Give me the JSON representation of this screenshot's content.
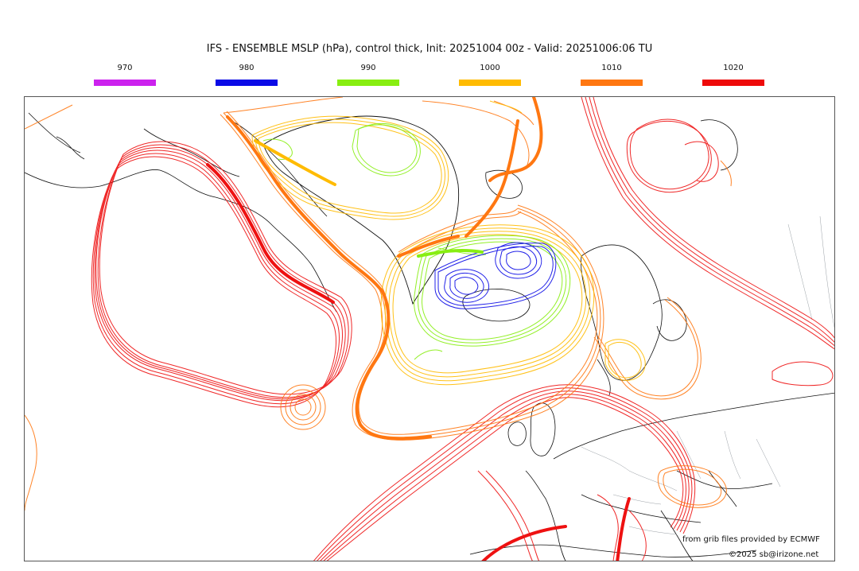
{
  "title": "IFS - ENSEMBLE MSLP (hPa), control thick, Init: 20251004 00z - Valid: 20251006:06 TU",
  "legend": [
    {
      "label": "970",
      "color": "#cc22ee"
    },
    {
      "label": "980",
      "color": "#0a0ae6"
    },
    {
      "label": "990",
      "color": "#88ee11"
    },
    {
      "label": "1000",
      "color": "#ffbb00"
    },
    {
      "label": "1010",
      "color": "#ff7711"
    },
    {
      "label": "1020",
      "color": "#ee0a0a"
    }
  ],
  "credits": {
    "source": "from grib files provided by ECMWF",
    "copyright": "©2025 sb@irizone.net"
  }
}
